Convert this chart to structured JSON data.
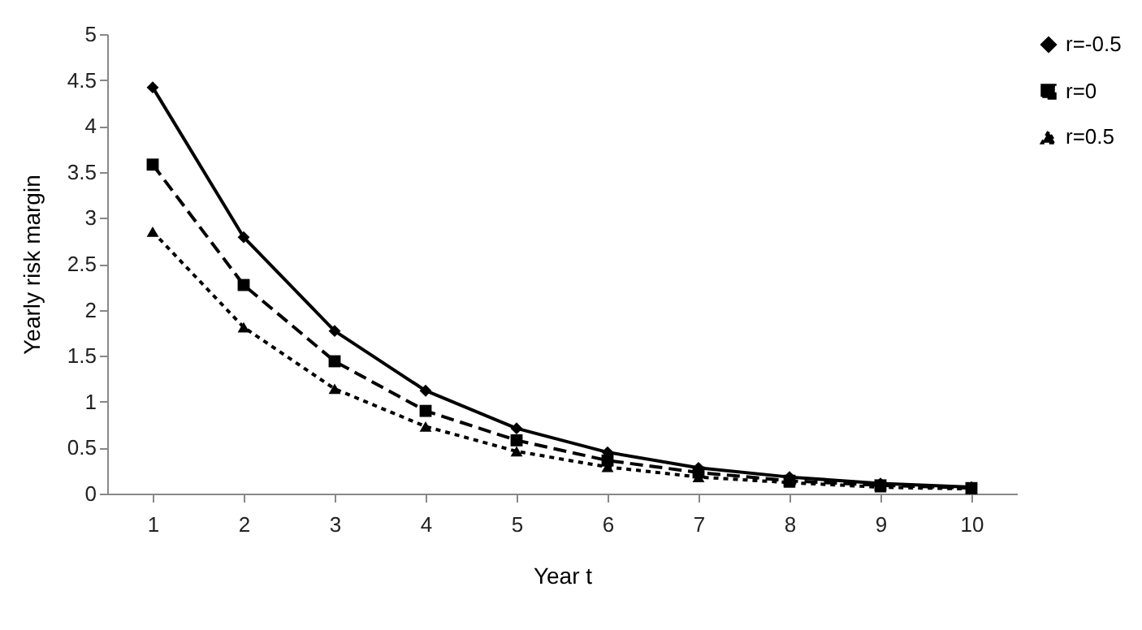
{
  "chart_data": {
    "type": "line",
    "xlabel": "Year t",
    "ylabel": "Yearly risk margin",
    "categories": [
      "1",
      "2",
      "3",
      "4",
      "5",
      "6",
      "7",
      "8",
      "9",
      "10"
    ],
    "series": [
      {
        "name": "r=-0.5",
        "color": "#000000",
        "marker": "diamond",
        "line_style": "solid",
        "values": [
          4.42,
          2.79,
          1.77,
          1.12,
          0.71,
          0.45,
          0.28,
          0.18,
          0.11,
          0.07
        ]
      },
      {
        "name": "r=0",
        "color": "#000000",
        "marker": "square",
        "line_style": "dashed",
        "values": [
          3.58,
          2.27,
          1.44,
          0.9,
          0.58,
          0.36,
          0.23,
          0.14,
          0.09,
          0.06
        ]
      },
      {
        "name": "r=0.5",
        "color": "#000000",
        "marker": "triangle",
        "line_style": "dotted",
        "values": [
          2.85,
          1.81,
          1.14,
          0.73,
          0.46,
          0.29,
          0.18,
          0.12,
          0.07,
          0.05
        ]
      }
    ],
    "ylim": [
      0,
      5
    ],
    "yticks": [
      0,
      0.5,
      1,
      1.5,
      2,
      2.5,
      3,
      3.5,
      4,
      4.5,
      5
    ],
    "grid": false,
    "legend": "top right"
  }
}
